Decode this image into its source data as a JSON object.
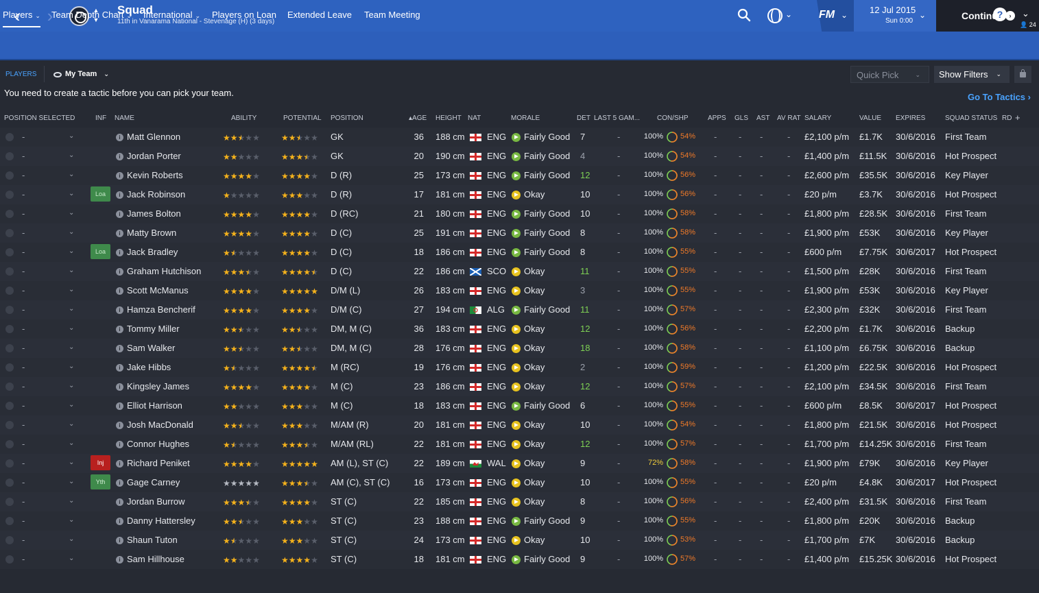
{
  "header": {
    "title": "Squad",
    "subtitle": "11th in Vanarama National - Stevenage (H) (3 days)",
    "back_icon": "‹",
    "forward_icon": "›",
    "fm_label": "FM",
    "date": "12 Jul 2015",
    "time": "Sun 0:00",
    "continue_label": "Continue",
    "inbox_count": "24"
  },
  "tabs": [
    {
      "label": "Players"
    },
    {
      "label": "Team Depth Chart"
    },
    {
      "label": "International"
    },
    {
      "label": "Players on Loan"
    },
    {
      "label": "Extended Leave"
    },
    {
      "label": "Team Meeting"
    }
  ],
  "subbar": {
    "section_label": "PLAYERS",
    "view_label": "My Team",
    "quick_pick_label": "Quick Pick",
    "show_filters_label": "Show Filters",
    "tactic_message": "You need to create a tactic before you can pick your team.",
    "go_to_tactics_label": "Go To Tactics"
  },
  "columns": [
    "POSITION SELECTED",
    "INF",
    "NAME",
    "ABILITY",
    "POTENTIAL",
    "POSITION",
    "AGE",
    "HEIGHT",
    "NAT",
    "MORALE",
    "DET",
    "LAST 5 GAM...",
    "CON/SHP",
    "APPS",
    "GLS",
    "AST",
    "AV RAT",
    "SALARY",
    "VALUE",
    "EXPIRES",
    "SQUAD STATUS",
    "RD"
  ],
  "colors": {
    "header_blue": "#2e62bf",
    "star_gold": "#f5b21c",
    "star_empty": "#5a5f6b",
    "star_grey": "#b5b9c2",
    "sharpness_orange": "#f07a28",
    "det_green": "#7ed054"
  },
  "players": [
    {
      "inf": "",
      "name": "Matt Glennon",
      "ability": 2.5,
      "potential": 2.5,
      "position": "GK",
      "age": "36",
      "height": "188 cm",
      "nat": "ENG",
      "morale": "Fairly Good",
      "det": "7",
      "con": "100%",
      "shp": "54%",
      "salary": "£2,100 p/m",
      "value": "£1.7K",
      "expires": "30/6/2016",
      "status": "First Team"
    },
    {
      "inf": "",
      "name": "Jordan Porter",
      "ability": 2,
      "potential": 3.5,
      "position": "GK",
      "age": "20",
      "height": "190 cm",
      "nat": "ENG",
      "morale": "Fairly Good",
      "det": "4",
      "con": "100%",
      "shp": "54%",
      "salary": "£1,400 p/m",
      "value": "£11.5K",
      "expires": "30/6/2016",
      "status": "Hot Prospect"
    },
    {
      "inf": "",
      "name": "Kevin Roberts",
      "ability": 4,
      "potential": 4,
      "position": "D (R)",
      "age": "25",
      "height": "173 cm",
      "nat": "ENG",
      "morale": "Fairly Good",
      "det": "12",
      "con": "100%",
      "shp": "56%",
      "salary": "£2,600 p/m",
      "value": "£35.5K",
      "expires": "30/6/2016",
      "status": "Key Player"
    },
    {
      "inf": "Loa",
      "name": "Jack Robinson",
      "ability": 1,
      "potential": 3,
      "position": "D (R)",
      "age": "17",
      "height": "181 cm",
      "nat": "ENG",
      "morale": "Okay",
      "det": "10",
      "con": "100%",
      "shp": "56%",
      "salary": "£20 p/m",
      "value": "£3.7K",
      "expires": "30/6/2016",
      "status": "Hot Prospect"
    },
    {
      "inf": "",
      "name": "James Bolton",
      "ability": 4,
      "potential": 4,
      "position": "D (RC)",
      "age": "21",
      "height": "180 cm",
      "nat": "ENG",
      "morale": "Fairly Good",
      "det": "10",
      "con": "100%",
      "shp": "58%",
      "salary": "£1,800 p/m",
      "value": "£28.5K",
      "expires": "30/6/2016",
      "status": "First Team"
    },
    {
      "inf": "",
      "name": "Matty Brown",
      "ability": 4,
      "potential": 4,
      "position": "D (C)",
      "age": "25",
      "height": "191 cm",
      "nat": "ENG",
      "morale": "Fairly Good",
      "det": "8",
      "con": "100%",
      "shp": "58%",
      "salary": "£1,900 p/m",
      "value": "£53K",
      "expires": "30/6/2016",
      "status": "Key Player"
    },
    {
      "inf": "Loa",
      "name": "Jack Bradley",
      "ability": 1.5,
      "potential": 4,
      "position": "D (C)",
      "age": "18",
      "height": "186 cm",
      "nat": "ENG",
      "morale": "Fairly Good",
      "det": "8",
      "con": "100%",
      "shp": "55%",
      "salary": "£600 p/m",
      "value": "£7.75K",
      "expires": "30/6/2017",
      "status": "Hot Prospect"
    },
    {
      "inf": "",
      "name": "Graham Hutchison",
      "ability": 3.5,
      "potential": 4.5,
      "position": "D (C)",
      "age": "22",
      "height": "186 cm",
      "nat": "SCO",
      "morale": "Okay",
      "det": "11",
      "con": "100%",
      "shp": "55%",
      "salary": "£1,500 p/m",
      "value": "£28K",
      "expires": "30/6/2016",
      "status": "First Team"
    },
    {
      "inf": "",
      "name": "Scott McManus",
      "ability": 4,
      "potential": 5,
      "position": "D/M (L)",
      "age": "26",
      "height": "183 cm",
      "nat": "ENG",
      "morale": "Okay",
      "det": "3",
      "con": "100%",
      "shp": "55%",
      "salary": "£1,900 p/m",
      "value": "£53K",
      "expires": "30/6/2016",
      "status": "Key Player"
    },
    {
      "inf": "",
      "name": "Hamza Bencherif",
      "ability": 4,
      "potential": 4,
      "position": "D/M (C)",
      "age": "27",
      "height": "194 cm",
      "nat": "ALG",
      "morale": "Fairly Good",
      "det": "11",
      "con": "100%",
      "shp": "57%",
      "salary": "£2,300 p/m",
      "value": "£32K",
      "expires": "30/6/2016",
      "status": "First Team"
    },
    {
      "inf": "",
      "name": "Tommy Miller",
      "ability": 2.5,
      "potential": 2.5,
      "position": "DM, M (C)",
      "age": "36",
      "height": "183 cm",
      "nat": "ENG",
      "morale": "Okay",
      "det": "12",
      "con": "100%",
      "shp": "56%",
      "salary": "£2,200 p/m",
      "value": "£1.7K",
      "expires": "30/6/2016",
      "status": "Backup"
    },
    {
      "inf": "",
      "name": "Sam Walker",
      "ability": 2.5,
      "potential": 2.5,
      "position": "DM, M (C)",
      "age": "28",
      "height": "176 cm",
      "nat": "ENG",
      "morale": "Okay",
      "det": "18",
      "con": "100%",
      "shp": "58%",
      "salary": "£1,100 p/m",
      "value": "£6.75K",
      "expires": "30/6/2016",
      "status": "Backup"
    },
    {
      "inf": "",
      "name": "Jake Hibbs",
      "ability": 1.5,
      "potential": 4.5,
      "position": "M (RC)",
      "age": "19",
      "height": "176 cm",
      "nat": "ENG",
      "morale": "Okay",
      "det": "2",
      "con": "100%",
      "shp": "59%",
      "salary": "£1,200 p/m",
      "value": "£22.5K",
      "expires": "30/6/2016",
      "status": "Hot Prospect"
    },
    {
      "inf": "",
      "name": "Kingsley James",
      "ability": 4,
      "potential": 4,
      "position": "M (C)",
      "age": "23",
      "height": "186 cm",
      "nat": "ENG",
      "morale": "Okay",
      "det": "12",
      "con": "100%",
      "shp": "57%",
      "salary": "£2,100 p/m",
      "value": "£34.5K",
      "expires": "30/6/2016",
      "status": "First Team"
    },
    {
      "inf": "",
      "name": "Elliot Harrison",
      "ability": 2,
      "potential": 3,
      "position": "M (C)",
      "age": "18",
      "height": "183 cm",
      "nat": "ENG",
      "morale": "Fairly Good",
      "det": "6",
      "con": "100%",
      "shp": "55%",
      "salary": "£600 p/m",
      "value": "£8.5K",
      "expires": "30/6/2017",
      "status": "Hot Prospect"
    },
    {
      "inf": "",
      "name": "Josh MacDonald",
      "ability": 2.5,
      "potential": 3,
      "position": "M/AM (R)",
      "age": "20",
      "height": "181 cm",
      "nat": "ENG",
      "morale": "Okay",
      "det": "10",
      "con": "100%",
      "shp": "54%",
      "salary": "£1,800 p/m",
      "value": "£21.5K",
      "expires": "30/6/2016",
      "status": "Hot Prospect"
    },
    {
      "inf": "",
      "name": "Connor Hughes",
      "ability": 1.5,
      "potential": 3.5,
      "position": "M/AM (RL)",
      "age": "22",
      "height": "181 cm",
      "nat": "ENG",
      "morale": "Okay",
      "det": "12",
      "con": "100%",
      "shp": "57%",
      "salary": "£1,700 p/m",
      "value": "£14.25K",
      "expires": "30/6/2016",
      "status": "First Team"
    },
    {
      "inf": "Inj",
      "name": "Richard Peniket",
      "ability": 4,
      "potential": 5,
      "position": "AM (L), ST (C)",
      "age": "22",
      "height": "189 cm",
      "nat": "WAL",
      "morale": "Okay",
      "det": "9",
      "con": "72%",
      "shp": "58%",
      "salary": "£1,900 p/m",
      "value": "£79K",
      "expires": "30/6/2016",
      "status": "Key Player"
    },
    {
      "inf": "Yth",
      "name": "Gage Carney",
      "ability": 0,
      "potential": 3.5,
      "position": "AM (C), ST (C)",
      "age": "16",
      "height": "173 cm",
      "nat": "ENG",
      "morale": "Okay",
      "det": "10",
      "con": "100%",
      "shp": "55%",
      "salary": "£20 p/m",
      "value": "£4.8K",
      "expires": "30/6/2017",
      "status": "Hot Prospect"
    },
    {
      "inf": "",
      "name": "Jordan Burrow",
      "ability": 3.5,
      "potential": 4,
      "position": "ST (C)",
      "age": "22",
      "height": "185 cm",
      "nat": "ENG",
      "morale": "Okay",
      "det": "8",
      "con": "100%",
      "shp": "56%",
      "salary": "£2,400 p/m",
      "value": "£31.5K",
      "expires": "30/6/2016",
      "status": "First Team"
    },
    {
      "inf": "",
      "name": "Danny Hattersley",
      "ability": 2.5,
      "potential": 3,
      "position": "ST (C)",
      "age": "23",
      "height": "188 cm",
      "nat": "ENG",
      "morale": "Fairly Good",
      "det": "9",
      "con": "100%",
      "shp": "55%",
      "salary": "£1,800 p/m",
      "value": "£20K",
      "expires": "30/6/2016",
      "status": "Backup"
    },
    {
      "inf": "",
      "name": "Shaun Tuton",
      "ability": 1.5,
      "potential": 3,
      "position": "ST (C)",
      "age": "24",
      "height": "173 cm",
      "nat": "ENG",
      "morale": "Okay",
      "det": "10",
      "con": "100%",
      "shp": "53%",
      "salary": "£1,700 p/m",
      "value": "£7K",
      "expires": "30/6/2016",
      "status": "Backup"
    },
    {
      "inf": "",
      "name": "Sam Hillhouse",
      "ability": 2,
      "potential": 4,
      "position": "ST (C)",
      "age": "18",
      "height": "181 cm",
      "nat": "ENG",
      "morale": "Fairly Good",
      "det": "9",
      "con": "100%",
      "shp": "57%",
      "salary": "£1,400 p/m",
      "value": "£15.25K",
      "expires": "30/6/2016",
      "status": "Hot Prospect"
    }
  ]
}
